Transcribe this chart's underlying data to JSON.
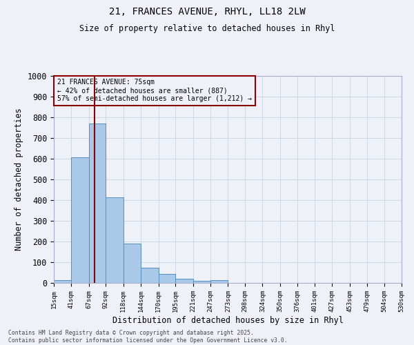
{
  "title_line1": "21, FRANCES AVENUE, RHYL, LL18 2LW",
  "title_line2": "Size of property relative to detached houses in Rhyl",
  "xlabel": "Distribution of detached houses by size in Rhyl",
  "ylabel": "Number of detached properties",
  "annotation_line1": "21 FRANCES AVENUE: 75sqm",
  "annotation_line2": "← 42% of detached houses are smaller (887)",
  "annotation_line3": "57% of semi-detached houses are larger (1,212) →",
  "property_size": 75,
  "bar_edges": [
    15,
    41,
    67,
    92,
    118,
    144,
    170,
    195,
    221,
    247,
    273,
    298,
    324,
    350,
    376,
    401,
    427,
    453,
    479,
    504,
    530
  ],
  "bar_heights": [
    15,
    607,
    770,
    413,
    191,
    75,
    43,
    20,
    10,
    15,
    0,
    0,
    0,
    0,
    0,
    0,
    0,
    0,
    0,
    0
  ],
  "bar_color": "#aac9e8",
  "bar_edge_color": "#4f8fc0",
  "vline_color": "#8b0000",
  "annotation_box_color": "#8b0000",
  "grid_color": "#d0d8e8",
  "background_color": "#eef2f8",
  "ylim": [
    0,
    1000
  ],
  "yticks": [
    0,
    100,
    200,
    300,
    400,
    500,
    600,
    700,
    800,
    900,
    1000
  ],
  "footnote1": "Contains HM Land Registry data © Crown copyright and database right 2025.",
  "footnote2": "Contains public sector information licensed under the Open Government Licence v3.0."
}
